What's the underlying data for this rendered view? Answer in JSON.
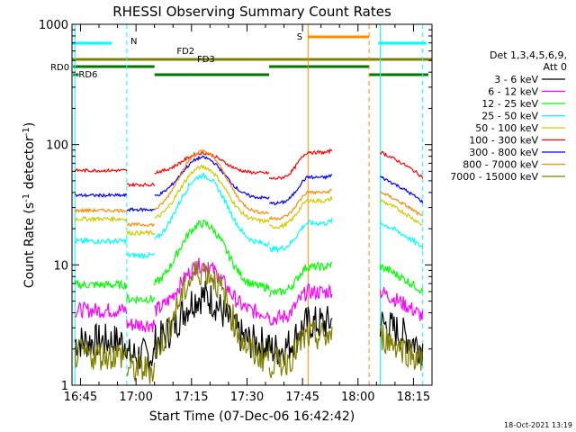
{
  "chart_data": {
    "type": "line",
    "title": "RHESSI Observing Summary Count Rates",
    "xlabel": "Start Time (07-Dec-06 16:42:42)",
    "ylabel": "Count Rate (s",
    "ylabel_sup": "-1",
    "ylabel_tail": " detector",
    "ylabel_tail_sup": "-1",
    "ylabel_close": ")",
    "y_scale": "log",
    "ylim": [
      1,
      1000
    ],
    "xlim": [
      "16:42:42",
      "18:20:00"
    ],
    "x_ticks": [
      "16:45",
      "17:00",
      "17:15",
      "17:30",
      "17:45",
      "18:00",
      "18:15"
    ],
    "y_ticks": [
      "1",
      "10",
      "100",
      "1000"
    ],
    "timestamp": "18-Oct-2021 13:19",
    "legend_header": [
      "Det 1,3,4,5,6,9,",
      "Att 0"
    ],
    "legend_placement": "right",
    "series": [
      {
        "name": "3 - 6 keV",
        "color": "#000000",
        "base": 2.2,
        "peak": 5.5,
        "noise": 0.35
      },
      {
        "name": "6 - 12 keV",
        "color": "#ff00ff",
        "base": 4.0,
        "peak": 10,
        "noise": 0.15
      },
      {
        "name": "12 - 25 keV",
        "color": "#00ff00",
        "base": 6.5,
        "peak": 22,
        "noise": 0.08
      },
      {
        "name": "25 - 50 keV",
        "color": "#00ffff",
        "base": 15,
        "peak": 55,
        "noise": 0.05
      },
      {
        "name": "50 - 100 keV",
        "color": "#cccc00",
        "base": 23,
        "peak": 65,
        "noise": 0.04
      },
      {
        "name": "100 - 300 keV",
        "color": "#ff0000",
        "base": 58,
        "peak": 85,
        "noise": 0.03
      },
      {
        "name": "300 - 800 keV",
        "color": "#0000ff",
        "base": 36,
        "peak": 78,
        "noise": 0.03
      },
      {
        "name": "800 - 7000 keV",
        "color": "#ff8c00",
        "base": 27,
        "peak": 88,
        "noise": 0.03
      },
      {
        "name": "7000 - 15000 keV",
        "color": "#808000",
        "base": 1.7,
        "peak": 9,
        "noise": 0.3
      }
    ],
    "flag_bars": [
      {
        "label": "N",
        "color": "#00ffff"
      },
      {
        "label": "FD2",
        "color": "#808000"
      },
      {
        "label": "FD3",
        "color": "#808000"
      },
      {
        "label": "S",
        "color": "#ff8c00"
      },
      {
        "label": "RD0",
        "color": "#007700"
      },
      {
        "label": "RD6",
        "color": "#007700"
      }
    ]
  }
}
